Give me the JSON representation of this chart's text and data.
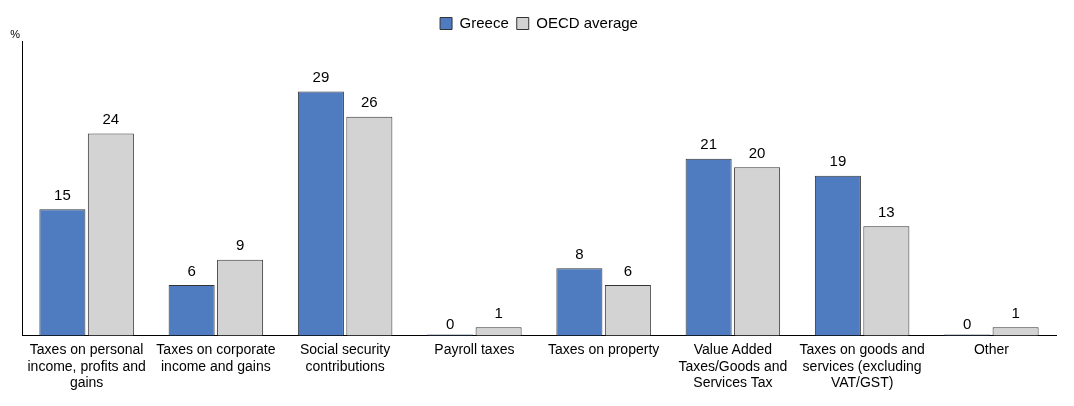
{
  "chart_data": {
    "type": "bar",
    "ylabel": "%",
    "categories": [
      "Taxes on personal income, profits and gains",
      "Taxes on corporate income and gains",
      "Social security contributions",
      "Payroll taxes",
      "Taxes on property",
      "Value Added Taxes/Goods and Services Tax",
      "Taxes on goods and services (excluding VAT/GST)",
      "Other"
    ],
    "series": [
      {
        "name": "Greece",
        "color": "#4f7cc0",
        "values": [
          15,
          6,
          29,
          0,
          8,
          21,
          19,
          0
        ]
      },
      {
        "name": "OECD average",
        "color": "#d3d3d3",
        "values": [
          24,
          9,
          26,
          1,
          6,
          20,
          13,
          1
        ]
      }
    ],
    "data_labels": true,
    "legend": "top",
    "grid": false,
    "tick_labels": "x"
  }
}
